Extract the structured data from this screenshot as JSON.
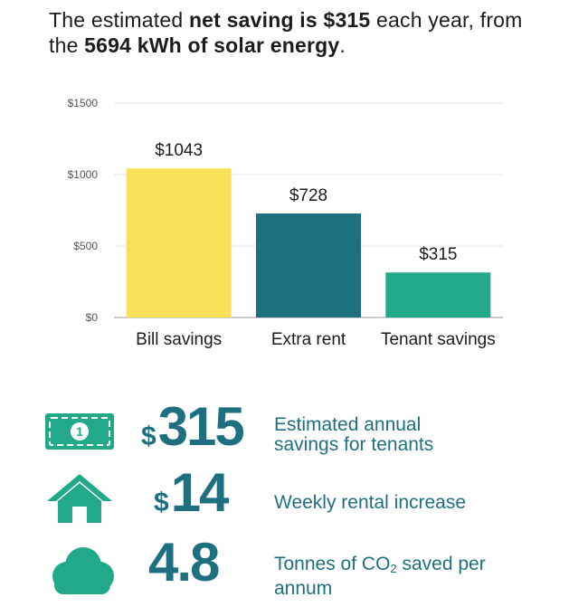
{
  "headline": {
    "part1": "The estimated ",
    "bold1": "net saving is $315",
    "part2": " each year, from the ",
    "bold2": "5694 kWh of solar energy",
    "part3": "."
  },
  "chart_data": {
    "type": "bar",
    "categories": [
      "Bill savings",
      "Extra rent",
      "Tenant savings"
    ],
    "values": [
      1043,
      728,
      315
    ],
    "value_labels": [
      "$1043",
      "$728",
      "$315"
    ],
    "colors": [
      "#fbe05a",
      "#1e6f80",
      "#22a98a"
    ],
    "yticks": [
      0,
      500,
      1000,
      1500
    ],
    "ytick_labels": [
      "$0",
      "$500",
      "$1000",
      "$1500"
    ],
    "ylim": [
      0,
      1500
    ],
    "grid": true,
    "title": "",
    "xlabel": "",
    "ylabel": ""
  },
  "stats": [
    {
      "icon": "money-bill-icon",
      "currency": "$",
      "value": "315",
      "desc_line1": "Estimated annual",
      "desc_line2": "savings for tenants"
    },
    {
      "icon": "house-icon",
      "currency": "$",
      "value": "14",
      "desc_line1": "Weekly rental increase",
      "desc_line2": ""
    },
    {
      "icon": "cloud-icon",
      "currency": "",
      "value": "4.8",
      "desc_pre": "Tonnes of CO",
      "desc_sub": "2",
      "desc_post": " saved per",
      "desc_line2": "annum"
    }
  ],
  "colors": {
    "teal": "#1e6f80",
    "green": "#22a98a",
    "yellow": "#fbe05a"
  }
}
